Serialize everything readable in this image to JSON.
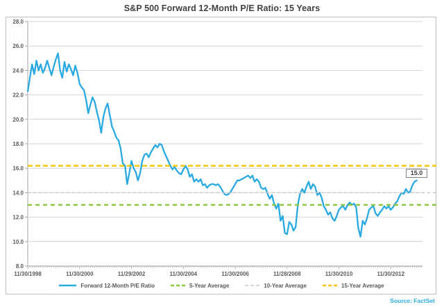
{
  "title": "S&P 500 Forward 12-Month P/E Ratio: 15 Years",
  "source": "Source: FactSet",
  "colors": {
    "line": "#29a9e1",
    "avg5": "#8dc63f",
    "avg10": "#c8c8c8",
    "avg15": "#f2c500",
    "grid": "#d2d2d2",
    "axis": "#a6a6a6",
    "tick_text": "#595959",
    "title_text": "#404040",
    "source_text": "#29abe2"
  },
  "chart_data": {
    "type": "line",
    "title": "S&P 500 Forward 12-Month P/E Ratio: 15 Years",
    "ylim": [
      8.0,
      28.0
    ],
    "y_tick_step": 2.0,
    "y_tick_labels": [
      "28.0",
      "26.0",
      "24.0",
      "22.0",
      "20.0",
      "18.0",
      "16.0",
      "14.0",
      "12.0",
      "10.0",
      "8.0"
    ],
    "x_tick_labels": [
      "11/30/1998",
      "11/30/2000",
      "11/29/2002",
      "11/30/2004",
      "11/30/2006",
      "11/28/2008",
      "11/30/2010",
      "11/30/2012"
    ],
    "months_per_x_tick": 24,
    "grid": true,
    "legend_position": "bottom",
    "end_value_label": "15.0",
    "series": [
      {
        "name": "Forward 12-Month P/E Ratio",
        "kind": "line",
        "color": "#29a9e1",
        "dash": null,
        "values": [
          22.3,
          23.4,
          24.5,
          23.7,
          24.8,
          24.0,
          24.5,
          23.8,
          24.2,
          24.8,
          24.2,
          23.6,
          24.3,
          24.9,
          25.4,
          24.0,
          23.4,
          24.7,
          23.9,
          24.5,
          24.1,
          23.6,
          24.4,
          23.8,
          22.9,
          22.6,
          22.4,
          21.6,
          20.5,
          21.2,
          21.8,
          21.4,
          20.6,
          19.9,
          18.9,
          20.2,
          20.9,
          21.3,
          20.3,
          19.4,
          19.0,
          18.5,
          18.3,
          17.6,
          16.4,
          16.2,
          14.7,
          15.6,
          16.6,
          16.0,
          15.7,
          15.0,
          15.6,
          16.6,
          17.1,
          17.2,
          16.9,
          17.3,
          17.6,
          17.9,
          17.7,
          18.0,
          17.9,
          17.4,
          17.0,
          16.6,
          16.2,
          15.9,
          16.1,
          15.8,
          15.6,
          15.5,
          15.9,
          16.2,
          15.9,
          15.3,
          15.5,
          14.9,
          15.1,
          14.9,
          15.1,
          14.6,
          14.7,
          14.4,
          14.6,
          14.7,
          14.7,
          14.6,
          14.7,
          14.5,
          14.2,
          13.9,
          13.8,
          13.9,
          14.1,
          14.4,
          14.7,
          15.0,
          15.0,
          15.1,
          15.2,
          15.3,
          15.4,
          15.2,
          15.4,
          14.9,
          15.1,
          14.9,
          14.4,
          14.3,
          14.4,
          13.9,
          13.5,
          13.8,
          13.1,
          12.7,
          13.1,
          11.7,
          12.1,
          10.7,
          10.6,
          11.6,
          11.4,
          10.9,
          11.2,
          13.0,
          13.9,
          14.3,
          14.0,
          14.5,
          14.9,
          14.3,
          14.7,
          14.5,
          13.8,
          14.0,
          13.6,
          12.9,
          12.6,
          12.2,
          12.4,
          11.9,
          11.7,
          12.1,
          12.6,
          12.8,
          12.9,
          12.6,
          13.0,
          13.2,
          13.0,
          13.1,
          12.8,
          11.1,
          10.4,
          11.7,
          11.4,
          11.9,
          12.6,
          12.8,
          12.9,
          12.3,
          12.1,
          12.4,
          12.6,
          12.9,
          12.7,
          12.9,
          12.6,
          12.8,
          13.1,
          13.3,
          13.7,
          14.0,
          13.9,
          14.3,
          14.0,
          14.1,
          14.6,
          14.9,
          15.0
        ]
      },
      {
        "name": "5-Year Average",
        "kind": "hline",
        "color": "#8dc63f",
        "dash": [
          6,
          5
        ],
        "width": 2.4,
        "value": 13.0
      },
      {
        "name": "10-Year Average",
        "kind": "hline",
        "color": "#c8c8c8",
        "dash": [
          4,
          4
        ],
        "width": 1.5,
        "value": 14.0
      },
      {
        "name": "15-Year Average",
        "kind": "hline",
        "color": "#f2c500",
        "dash": [
          7,
          4
        ],
        "width": 2.4,
        "value": 16.2
      }
    ]
  }
}
